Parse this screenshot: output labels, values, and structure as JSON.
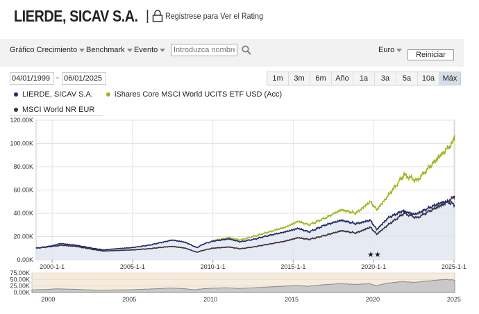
{
  "header": {
    "fund_name": "LIERDE, SICAV S.A.",
    "separator": "|",
    "rating_link": "Registrese para Ver el Rating"
  },
  "toolbar": {
    "growth_chart_label": "Gráfico Crecimiento",
    "benchmark_label": "Benchmark",
    "event_label": "Evento",
    "search_placeholder": "Introduzca nombre",
    "currency_label": "Euro",
    "reset_label": "Reiniciar"
  },
  "date_range": {
    "start": "04/01/1999",
    "separator": "-",
    "end": "06/01/2025"
  },
  "range_buttons": [
    "1m",
    "3m",
    "6m",
    "Año",
    "1a",
    "3a",
    "5a",
    "10a",
    "Máx"
  ],
  "range_active": "Máx",
  "legend": [
    {
      "label": "LIERDE, SICAV S.A.",
      "color": "#1f2a6b"
    },
    {
      "label": "iShares Core MSCI World UCITS ETF USD (Acc)",
      "color": "#9ab71f"
    },
    {
      "label": "MSCI World NR EUR",
      "color": "#3b2f3a"
    }
  ],
  "chart_data": {
    "type": "line",
    "x_axis": {
      "tick_labels": [
        "2000-1-1",
        "2005-1-1",
        "2010-1-1",
        "2015-1-1",
        "2020-1-1",
        "2025-1-1"
      ],
      "range": [
        1999.0,
        2025.05
      ]
    },
    "y_axis": {
      "tick_labels": [
        "0.00K",
        "20.00K",
        "40.00K",
        "60.00K",
        "80.00K",
        "100.00K",
        "120.00K"
      ],
      "range": [
        0,
        120000
      ]
    },
    "grid": "on",
    "annotations": [
      "★★"
    ],
    "series": [
      {
        "name": "LIERDE, SICAV S.A.",
        "color": "#1f2a6b",
        "points": [
          [
            1999.0,
            10000
          ],
          [
            2000.0,
            12000
          ],
          [
            2000.5,
            14000
          ],
          [
            2001.5,
            12500
          ],
          [
            2002.5,
            10000
          ],
          [
            2003.2,
            8500
          ],
          [
            2004.0,
            9500
          ],
          [
            2005.0,
            10500
          ],
          [
            2006.0,
            12500
          ],
          [
            2007.0,
            15500
          ],
          [
            2007.5,
            17000
          ],
          [
            2008.3,
            15000
          ],
          [
            2009.0,
            10500
          ],
          [
            2009.5,
            14000
          ],
          [
            2010.0,
            16000
          ],
          [
            2011.0,
            18000
          ],
          [
            2011.7,
            15500
          ],
          [
            2012.5,
            17500
          ],
          [
            2013.5,
            21000
          ],
          [
            2014.5,
            24000
          ],
          [
            2015.3,
            27000
          ],
          [
            2016.0,
            24000
          ],
          [
            2017.0,
            30000
          ],
          [
            2018.0,
            34000
          ],
          [
            2018.9,
            31000
          ],
          [
            2019.8,
            34000
          ],
          [
            2020.2,
            26000
          ],
          [
            2020.9,
            36000
          ],
          [
            2021.8,
            42000
          ],
          [
            2022.6,
            39000
          ],
          [
            2023.5,
            45000
          ],
          [
            2024.4,
            50000
          ],
          [
            2024.9,
            48500
          ],
          [
            2025.05,
            47000
          ]
        ]
      },
      {
        "name": "iShares Core MSCI World UCITS ETF USD (Acc)",
        "color": "#9ab71f",
        "points": [
          [
            2010.0,
            16500
          ],
          [
            2011.0,
            19000
          ],
          [
            2011.7,
            17000
          ],
          [
            2012.5,
            20000
          ],
          [
            2013.5,
            24000
          ],
          [
            2014.5,
            28000
          ],
          [
            2015.3,
            33000
          ],
          [
            2016.0,
            30000
          ],
          [
            2017.0,
            36000
          ],
          [
            2018.0,
            43000
          ],
          [
            2018.9,
            40000
          ],
          [
            2019.8,
            50000
          ],
          [
            2020.2,
            43000
          ],
          [
            2020.9,
            55000
          ],
          [
            2021.9,
            73000
          ],
          [
            2022.7,
            68000
          ],
          [
            2023.5,
            80000
          ],
          [
            2024.4,
            93000
          ],
          [
            2024.9,
            100000
          ],
          [
            2025.05,
            107000
          ]
        ]
      },
      {
        "name": "MSCI World NR EUR",
        "color": "#3b2f3a",
        "points": [
          [
            1999.0,
            10000
          ],
          [
            2000.0,
            11500
          ],
          [
            2000.6,
            12500
          ],
          [
            2001.5,
            11500
          ],
          [
            2002.5,
            9000
          ],
          [
            2003.2,
            7500
          ],
          [
            2004.0,
            8000
          ],
          [
            2005.0,
            8500
          ],
          [
            2006.0,
            9500
          ],
          [
            2007.0,
            11000
          ],
          [
            2007.5,
            11500
          ],
          [
            2008.3,
            10000
          ],
          [
            2009.0,
            6500
          ],
          [
            2009.5,
            8500
          ],
          [
            2010.0,
            10000
          ],
          [
            2011.0,
            11000
          ],
          [
            2011.7,
            9500
          ],
          [
            2012.5,
            11000
          ],
          [
            2013.5,
            13500
          ],
          [
            2014.5,
            16000
          ],
          [
            2015.3,
            19000
          ],
          [
            2016.0,
            17500
          ],
          [
            2017.0,
            21000
          ],
          [
            2018.0,
            25000
          ],
          [
            2018.9,
            23000
          ],
          [
            2019.8,
            28000
          ],
          [
            2020.2,
            22000
          ],
          [
            2020.9,
            30000
          ],
          [
            2021.9,
            40000
          ],
          [
            2022.7,
            36000
          ],
          [
            2023.5,
            42000
          ],
          [
            2024.4,
            48000
          ],
          [
            2024.9,
            53000
          ],
          [
            2025.05,
            55000
          ]
        ]
      }
    ]
  },
  "navigator": {
    "tick_labels": [
      "0.00K",
      "25.00K",
      "50.00K",
      "75.00K"
    ],
    "y_range": [
      0,
      75000
    ],
    "year_labels": [
      "2000",
      "2005",
      "2010",
      "2015",
      "2020",
      "2025"
    ]
  }
}
